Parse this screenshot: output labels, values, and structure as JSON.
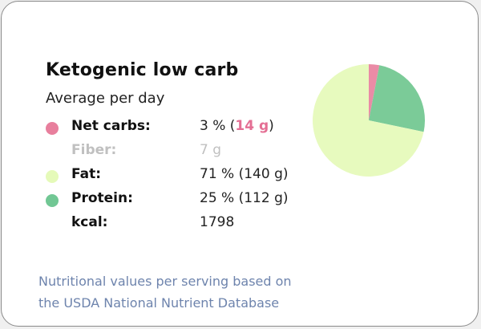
{
  "card": {
    "title": "Ketogenic low carb",
    "subtitle": "Average per day",
    "rows": [
      {
        "label": "Net carbs:",
        "value_prefix": "3 % (",
        "value_highlight": "14 g",
        "value_suffix": ")",
        "dot_color": "#e87f9d",
        "highlight_color": "#e46f94"
      },
      {
        "label": "Fiber:",
        "value": "7 g"
      },
      {
        "label": "Fat:",
        "value": "71 % (140 g)",
        "dot_color": "#e5fab9"
      },
      {
        "label": "Protein:",
        "value": "25 % (112 g)",
        "dot_color": "#71c794"
      },
      {
        "label": "kcal:",
        "value": "1798"
      }
    ],
    "footnote_line1": "Nutritional values per serving based on",
    "footnote_line2": "the USDA National Nutrient Database"
  },
  "chart_data": {
    "type": "pie",
    "title": "",
    "slices": [
      {
        "label": "Net carbs",
        "value": 3,
        "color": "#ea8ba6"
      },
      {
        "label": "Protein",
        "value": 25,
        "color": "#7bcb98"
      },
      {
        "label": "Fat",
        "value": 71,
        "color": "#e7fabe"
      }
    ],
    "start_angle_deg": 0,
    "direction": "clockwise"
  }
}
